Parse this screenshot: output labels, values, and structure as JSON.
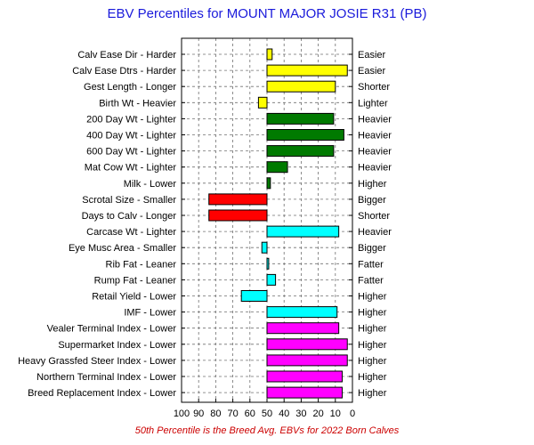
{
  "chart_data": {
    "type": "bar",
    "orientation": "horizontal",
    "title": "EBV Percentiles for MOUNT MAJOR JOSIE R31 (PB)",
    "footnote": "50th Percentile is the Breed Avg. EBVs for 2022 Born Calves",
    "xlim": [
      100,
      0
    ],
    "x_ticks": [
      "100",
      "90",
      "80",
      "70",
      "60",
      "50",
      "40",
      "30",
      "20",
      "10",
      "0"
    ],
    "grid": true,
    "baseline": 50,
    "colors": {
      "title": "#1a1adb",
      "footnote": "#cc0000",
      "yellow": "#ffff00",
      "green": "#007a00",
      "red": "#ff0000",
      "cyan": "#00ffff",
      "magenta": "#ff00ff"
    },
    "rows": [
      {
        "left_label": "Calv Ease Dir - Harder",
        "right_label": "Easier",
        "value": 47,
        "color": "yellow"
      },
      {
        "left_label": "Calv Ease Dtrs - Harder",
        "right_label": "Easier",
        "value": 3,
        "color": "yellow"
      },
      {
        "left_label": "Gest Length - Longer",
        "right_label": "Shorter",
        "value": 10,
        "color": "yellow"
      },
      {
        "left_label": "Birth Wt - Heavier",
        "right_label": "Lighter",
        "value": 55,
        "color": "yellow"
      },
      {
        "left_label": "200 Day Wt - Lighter",
        "right_label": "Heavier",
        "value": 11,
        "color": "green"
      },
      {
        "left_label": "400 Day Wt - Lighter",
        "right_label": "Heavier",
        "value": 5,
        "color": "green"
      },
      {
        "left_label": "600 Day Wt - Lighter",
        "right_label": "Heavier",
        "value": 11,
        "color": "green"
      },
      {
        "left_label": "Mat Cow Wt - Lighter",
        "right_label": "Heavier",
        "value": 38,
        "color": "green"
      },
      {
        "left_label": "Milk - Lower",
        "right_label": "Higher",
        "value": 48,
        "color": "green"
      },
      {
        "left_label": "Scrotal Size - Smaller",
        "right_label": "Bigger",
        "value": 84,
        "color": "red"
      },
      {
        "left_label": "Days to Calv - Longer",
        "right_label": "Shorter",
        "value": 84,
        "color": "red"
      },
      {
        "left_label": "Carcase Wt - Lighter",
        "right_label": "Heavier",
        "value": 8,
        "color": "cyan"
      },
      {
        "left_label": "Eye Musc Area - Smaller",
        "right_label": "Bigger",
        "value": 53,
        "color": "cyan"
      },
      {
        "left_label": "Rib Fat - Leaner",
        "right_label": "Fatter",
        "value": 49,
        "color": "cyan"
      },
      {
        "left_label": "Rump Fat - Leaner",
        "right_label": "Fatter",
        "value": 45,
        "color": "cyan"
      },
      {
        "left_label": "Retail Yield - Lower",
        "right_label": "Higher",
        "value": 65,
        "color": "cyan"
      },
      {
        "left_label": "IMF - Lower",
        "right_label": "Higher",
        "value": 9,
        "color": "cyan"
      },
      {
        "left_label": "Vealer Terminal Index - Lower",
        "right_label": "Higher",
        "value": 8,
        "color": "magenta"
      },
      {
        "left_label": "Supermarket Index - Lower",
        "right_label": "Higher",
        "value": 3,
        "color": "magenta"
      },
      {
        "left_label": "Heavy Grassfed Steer Index - Lower",
        "right_label": "Higher",
        "value": 3,
        "color": "magenta"
      },
      {
        "left_label": "Northern Terminal Index - Lower",
        "right_label": "Higher",
        "value": 6,
        "color": "magenta"
      },
      {
        "left_label": "Breed Replacement Index - Lower",
        "right_label": "Higher",
        "value": 6,
        "color": "magenta"
      }
    ]
  }
}
